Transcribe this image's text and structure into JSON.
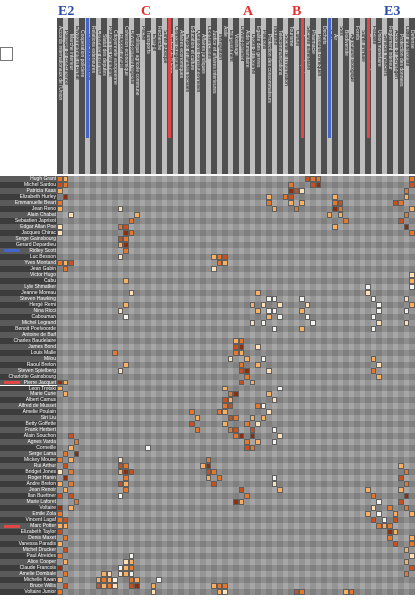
{
  "top_labels": [
    {
      "text": "E2",
      "color": "#2a4aa8"
    },
    {
      "text": "C",
      "color": "#e03030"
    },
    {
      "text": "A",
      "color": "#e03030"
    },
    {
      "text": "B",
      "color": "#e03030"
    },
    {
      "text": "E3",
      "color": "#2a4aa8"
    }
  ],
  "marker_colors": {
    "blue": "#4466cc",
    "red": "#e04848"
  },
  "cell_colors": [
    "#f4f2ec",
    "#fde0b8",
    "#f8b060",
    "#e6762a",
    "#c8501e",
    "#8a3010"
  ],
  "header_columns": [
    "Accords internationaux de l'Union",
    "Politique de concurrence",
    "Marche interieur",
    "Environnement et climat",
    "Cooperation policiere",
    "Droits fondamentaux",
    "Relations exterieures",
    "Commerce exterieur",
    "Statut des deputes",
    "Pouvoirs du Parlement",
    "Citoyennete europeenne",
    "Rapport annuel",
    "Cohesion economique",
    "Developpement regional",
    "Politique agricole commune",
    "Peche",
    "Transports",
    "Energie",
    "Recherche",
    "Sante publique",
    "Budget de l'Union",
    "Controle budgetaire",
    "Affaires economiques",
    "Emploi et affaires sociales",
    "Education et culture",
    "Questions constitutionnelles",
    "Affaires juridiques",
    "Libertes civiles",
    "Justice et affaires interieures",
    "Immigration",
    "Asile",
    "Elargissement",
    "Voisinage",
    "Developpement",
    "Aide humanitaire",
    "Droits de l'homme",
    "Egalite des genres",
    "Petitions",
    "Protection des consommateurs",
    "Industrie",
    "Telecommunications",
    "Societe de l'information",
    "Tourisme",
    "Culture",
    "Jeunesse et sport",
    "Securite alimentaire",
    "Pharmacie",
    "Produits chimiques",
    "Dechets",
    "Eau",
    "Air",
    "Sols",
    "Biodiversite",
    "Agriculture biologique",
    "Forets",
    "Sante animale",
    "Bien-etre animal",
    "Fiscalite",
    "Union monetaire",
    "Services financiers",
    "Reglement interieur",
    "Accords de Schengen",
    "Protection des donnees",
    "Lutte antiterroriste",
    "Defense"
  ],
  "member_names": [
    "Hugh Grant",
    "Michel Sardou",
    "Patricia Kaas",
    "Elizabeth Hurley",
    "Emmanuelle Beart",
    "Jean Reno",
    "Alain Chabat",
    "Sebastien Japrisot",
    "Edgar Allan Poe",
    "Jacques Chirac",
    "Serge Gainsbourg",
    "Gerard Depardieu",
    "Ridley Scott",
    "Luc Besson",
    "Yves Montand",
    "Jean Gabin",
    "Victor Hugo",
    "Cabu",
    "Lyle Shmatker",
    "Jeanne Moreau",
    "Steven Hawking",
    "Hergé Remi",
    "Nina Ricci",
    "Cabouman",
    "Michel Legrand",
    "Benoit Poelvoorde",
    "Antoine de Baif",
    "Charles Baudelaire",
    "James Bond",
    "Louis Malle",
    "Milou",
    "Raoul Breton",
    "Steven Spielberg",
    "Charlotte Gainsbourg",
    "Pierre Jacquet",
    "Leon Trotski",
    "Marie Curie",
    "Albert Camus",
    "Alfred de Musset",
    "Amelie Poulain",
    "Siri Liu",
    "Betty Goffette",
    "Frank Herbert",
    "Alain Souchon",
    "Agnes Varda",
    "Corneille",
    "Serge Lama",
    "Mickey Mouse",
    "Rui Arthur",
    "Bridget Jones",
    "Roger Hanin",
    "Andre Breton",
    "Jean Renoir",
    "Ilan Buettner",
    "Marie Laforet",
    "Voltaire",
    "Emile Zola",
    "Vincent Lagaf",
    "Marc Potter",
    "Elizabeth Taylor",
    "Denis Maxet",
    "Vanessa Paradis",
    "Michel Drucker",
    "Paul Atreides",
    "Alice Cooper",
    "Claude Francois",
    "Amelie Dombale",
    "Michelle Kwan",
    "Bruce Willis",
    "Voltaire Junior"
  ],
  "cells": [
    [
      0,
      0,
      3
    ],
    [
      0,
      1,
      2
    ],
    [
      1,
      0,
      4
    ],
    [
      1,
      1,
      3
    ],
    [
      2,
      0,
      2
    ],
    [
      3,
      1,
      5
    ],
    [
      4,
      0,
      3
    ],
    [
      6,
      2,
      1
    ],
    [
      8,
      0,
      1
    ],
    [
      9,
      0,
      1
    ],
    [
      5,
      0,
      2
    ],
    [
      0,
      45,
      4
    ],
    [
      0,
      46,
      3
    ],
    [
      0,
      47,
      3
    ],
    [
      1,
      46,
      4
    ],
    [
      1,
      47,
      5
    ],
    [
      4,
      61,
      4
    ],
    [
      4,
      62,
      3
    ],
    [
      3,
      63,
      2
    ],
    [
      2,
      63,
      3
    ],
    [
      1,
      64,
      4
    ],
    [
      0,
      64,
      3
    ],
    [
      5,
      64,
      2
    ],
    [
      6,
      63,
      3
    ],
    [
      7,
      62,
      4
    ],
    [
      8,
      63,
      5
    ],
    [
      9,
      64,
      3
    ],
    [
      1,
      42,
      3
    ],
    [
      2,
      42,
      5
    ],
    [
      2,
      43,
      4
    ],
    [
      3,
      41,
      3
    ],
    [
      3,
      42,
      4
    ],
    [
      4,
      42,
      2
    ],
    [
      5,
      43,
      3
    ],
    [
      4,
      44,
      2
    ],
    [
      2,
      44,
      1
    ],
    [
      3,
      50,
      2
    ],
    [
      4,
      50,
      3
    ],
    [
      4,
      51,
      4
    ],
    [
      5,
      50,
      5
    ],
    [
      5,
      51,
      3
    ],
    [
      6,
      51,
      2
    ],
    [
      7,
      52,
      3
    ],
    [
      6,
      49,
      2
    ],
    [
      8,
      50,
      2
    ],
    [
      3,
      38,
      2
    ],
    [
      4,
      38,
      3
    ],
    [
      5,
      39,
      2
    ],
    [
      5,
      11,
      1
    ],
    [
      6,
      14,
      2
    ],
    [
      7,
      13,
      3
    ],
    [
      8,
      11,
      3
    ],
    [
      8,
      12,
      4
    ],
    [
      9,
      12,
      5
    ],
    [
      9,
      13,
      3
    ],
    [
      10,
      11,
      4
    ],
    [
      10,
      12,
      3
    ],
    [
      11,
      11,
      2
    ],
    [
      11,
      12,
      5
    ],
    [
      12,
      12,
      3
    ],
    [
      13,
      11,
      1
    ],
    [
      13,
      28,
      2
    ],
    [
      13,
      29,
      3
    ],
    [
      13,
      30,
      4
    ],
    [
      14,
      29,
      3
    ],
    [
      14,
      30,
      2
    ],
    [
      15,
      28,
      1
    ],
    [
      14,
      0,
      3
    ],
    [
      14,
      1,
      2
    ],
    [
      14,
      2,
      4
    ],
    [
      15,
      1,
      3
    ],
    [
      17,
      12,
      2
    ],
    [
      19,
      13,
      1
    ],
    [
      21,
      12,
      2
    ],
    [
      22,
      11,
      1
    ],
    [
      23,
      12,
      0
    ],
    [
      19,
      36,
      2
    ],
    [
      20,
      38,
      0
    ],
    [
      21,
      37,
      1
    ],
    [
      22,
      38,
      0
    ],
    [
      20,
      39,
      0
    ],
    [
      21,
      40,
      1
    ],
    [
      22,
      39,
      0
    ],
    [
      23,
      38,
      2
    ],
    [
      24,
      37,
      0
    ],
    [
      23,
      40,
      0
    ],
    [
      25,
      39,
      0
    ],
    [
      22,
      36,
      2
    ],
    [
      21,
      35,
      2
    ],
    [
      24,
      35,
      1
    ],
    [
      20,
      44,
      0
    ],
    [
      21,
      45,
      1
    ],
    [
      22,
      44,
      2
    ],
    [
      23,
      45,
      0
    ],
    [
      24,
      46,
      0
    ],
    [
      25,
      44,
      2
    ],
    [
      18,
      56,
      0
    ],
    [
      19,
      56,
      1
    ],
    [
      20,
      57,
      0
    ],
    [
      21,
      58,
      0
    ],
    [
      22,
      58,
      0
    ],
    [
      23,
      57,
      0
    ],
    [
      24,
      58,
      1
    ],
    [
      25,
      57,
      0
    ],
    [
      16,
      64,
      1
    ],
    [
      17,
      64,
      2
    ],
    [
      18,
      64,
      0
    ],
    [
      20,
      63,
      1
    ],
    [
      21,
      64,
      2
    ],
    [
      22,
      63,
      0
    ],
    [
      24,
      63,
      1
    ],
    [
      27,
      32,
      2
    ],
    [
      27,
      33,
      3
    ],
    [
      28,
      32,
      4
    ],
    [
      28,
      33,
      5
    ],
    [
      29,
      32,
      3
    ],
    [
      29,
      33,
      2
    ],
    [
      30,
      31,
      1
    ],
    [
      30,
      34,
      2
    ],
    [
      31,
      33,
      3
    ],
    [
      32,
      33,
      4
    ],
    [
      32,
      34,
      5
    ],
    [
      33,
      34,
      3
    ],
    [
      34,
      35,
      2
    ],
    [
      34,
      33,
      4
    ],
    [
      28,
      36,
      1
    ],
    [
      30,
      37,
      0
    ],
    [
      31,
      36,
      2
    ],
    [
      32,
      38,
      1
    ],
    [
      29,
      10,
      3
    ],
    [
      31,
      12,
      2
    ],
    [
      32,
      11,
      1
    ],
    [
      34,
      0,
      5
    ],
    [
      34,
      1,
      2
    ],
    [
      35,
      0,
      2
    ],
    [
      36,
      1,
      2
    ],
    [
      30,
      57,
      2
    ],
    [
      31,
      58,
      1
    ],
    [
      32,
      57,
      3
    ],
    [
      33,
      58,
      2
    ],
    [
      35,
      30,
      2
    ],
    [
      36,
      31,
      3
    ],
    [
      36,
      32,
      5
    ],
    [
      37,
      30,
      4
    ],
    [
      37,
      31,
      2
    ],
    [
      38,
      30,
      3
    ],
    [
      38,
      31,
      4
    ],
    [
      39,
      29,
      3
    ],
    [
      39,
      30,
      2
    ],
    [
      40,
      31,
      4
    ],
    [
      40,
      32,
      3
    ],
    [
      41,
      30,
      2
    ],
    [
      42,
      31,
      3
    ],
    [
      42,
      32,
      4
    ],
    [
      43,
      33,
      5
    ],
    [
      43,
      32,
      3
    ],
    [
      38,
      37,
      0
    ],
    [
      39,
      38,
      1
    ],
    [
      40,
      37,
      2
    ],
    [
      41,
      36,
      1
    ],
    [
      38,
      36,
      3
    ],
    [
      40,
      35,
      2
    ],
    [
      36,
      38,
      2
    ],
    [
      37,
      39,
      1
    ],
    [
      35,
      40,
      0
    ],
    [
      41,
      34,
      3
    ],
    [
      42,
      35,
      4
    ],
    [
      43,
      35,
      5
    ],
    [
      44,
      34,
      3
    ],
    [
      44,
      36,
      2
    ],
    [
      45,
      34,
      4
    ],
    [
      45,
      35,
      3
    ],
    [
      39,
      24,
      3
    ],
    [
      40,
      25,
      2
    ],
    [
      41,
      24,
      4
    ],
    [
      42,
      25,
      3
    ],
    [
      42,
      39,
      0
    ],
    [
      43,
      40,
      1
    ],
    [
      44,
      39,
      0
    ],
    [
      43,
      2,
      4
    ],
    [
      44,
      3,
      3
    ],
    [
      45,
      2,
      2
    ],
    [
      46,
      3,
      5
    ],
    [
      46,
      1,
      3
    ],
    [
      47,
      2,
      2
    ],
    [
      48,
      1,
      4
    ],
    [
      49,
      2,
      3
    ],
    [
      50,
      1,
      5
    ],
    [
      51,
      2,
      3
    ],
    [
      52,
      1,
      2
    ],
    [
      53,
      2,
      4
    ],
    [
      54,
      3,
      3
    ],
    [
      55,
      2,
      2
    ],
    [
      47,
      0,
      3
    ],
    [
      49,
      0,
      1
    ],
    [
      51,
      0,
      2
    ],
    [
      53,
      0,
      4
    ],
    [
      55,
      0,
      5
    ],
    [
      57,
      0,
      3
    ],
    [
      58,
      1,
      2
    ],
    [
      59,
      0,
      4
    ],
    [
      60,
      1,
      3
    ],
    [
      61,
      0,
      2
    ],
    [
      62,
      1,
      4
    ],
    [
      63,
      0,
      3
    ],
    [
      64,
      1,
      2
    ],
    [
      65,
      0,
      5
    ],
    [
      66,
      1,
      3
    ],
    [
      67,
      0,
      2
    ],
    [
      68,
      1,
      4
    ],
    [
      69,
      0,
      3
    ],
    [
      45,
      16,
      0
    ],
    [
      47,
      11,
      1
    ],
    [
      48,
      11,
      4
    ],
    [
      48,
      12,
      3
    ],
    [
      49,
      11,
      2
    ],
    [
      49,
      12,
      5
    ],
    [
      49,
      13,
      4
    ],
    [
      50,
      12,
      3
    ],
    [
      51,
      11,
      4
    ],
    [
      51,
      12,
      2
    ],
    [
      52,
      12,
      3
    ],
    [
      53,
      11,
      0
    ],
    [
      48,
      26,
      2
    ],
    [
      47,
      27,
      3
    ],
    [
      48,
      27,
      5
    ],
    [
      49,
      27,
      4
    ],
    [
      49,
      28,
      3
    ],
    [
      50,
      27,
      2
    ],
    [
      51,
      28,
      4
    ],
    [
      50,
      29,
      3
    ],
    [
      50,
      39,
      0
    ],
    [
      51,
      39,
      1
    ],
    [
      52,
      40,
      2
    ],
    [
      52,
      33,
      4
    ],
    [
      53,
      34,
      3
    ],
    [
      54,
      33,
      2
    ],
    [
      54,
      32,
      5
    ],
    [
      48,
      62,
      2
    ],
    [
      49,
      63,
      3
    ],
    [
      50,
      62,
      4
    ],
    [
      51,
      63,
      3
    ],
    [
      52,
      62,
      2
    ],
    [
      53,
      63,
      5
    ],
    [
      54,
      62,
      4
    ],
    [
      55,
      63,
      3
    ],
    [
      56,
      64,
      2
    ],
    [
      52,
      56,
      2
    ],
    [
      53,
      57,
      3
    ],
    [
      54,
      58,
      0
    ],
    [
      55,
      57,
      1
    ],
    [
      56,
      58,
      0
    ],
    [
      57,
      59,
      0
    ],
    [
      56,
      56,
      2
    ],
    [
      57,
      57,
      4
    ],
    [
      58,
      58,
      3
    ],
    [
      58,
      59,
      2
    ],
    [
      55,
      60,
      3
    ],
    [
      56,
      61,
      2
    ],
    [
      57,
      61,
      4
    ],
    [
      58,
      60,
      3
    ],
    [
      59,
      60,
      5
    ],
    [
      59,
      61,
      2
    ],
    [
      60,
      60,
      3
    ],
    [
      61,
      61,
      4
    ],
    [
      56,
      0,
      3
    ],
    [
      57,
      1,
      4
    ],
    [
      58,
      0,
      2
    ],
    [
      60,
      64,
      2
    ],
    [
      61,
      64,
      3
    ],
    [
      62,
      63,
      2
    ],
    [
      63,
      64,
      1
    ],
    [
      64,
      63,
      2
    ],
    [
      65,
      64,
      4
    ],
    [
      66,
      63,
      3
    ],
    [
      63,
      13,
      0
    ],
    [
      64,
      12,
      1
    ],
    [
      64,
      13,
      2
    ],
    [
      65,
      11,
      0
    ],
    [
      65,
      12,
      2
    ],
    [
      65,
      13,
      3
    ],
    [
      66,
      11,
      1
    ],
    [
      66,
      12,
      2
    ],
    [
      66,
      13,
      0
    ],
    [
      66,
      8,
      2
    ],
    [
      66,
      9,
      1
    ],
    [
      67,
      7,
      2
    ],
    [
      67,
      8,
      3
    ],
    [
      67,
      9,
      2
    ],
    [
      68,
      7,
      4
    ],
    [
      68,
      8,
      2
    ],
    [
      68,
      9,
      3
    ],
    [
      67,
      10,
      0
    ],
    [
      68,
      10,
      1
    ],
    [
      67,
      13,
      3
    ],
    [
      68,
      13,
      4
    ],
    [
      67,
      14,
      2
    ],
    [
      68,
      14,
      5
    ],
    [
      68,
      17,
      2
    ],
    [
      69,
      17,
      1
    ],
    [
      67,
      18,
      0
    ],
    [
      68,
      28,
      2
    ],
    [
      68,
      29,
      3
    ],
    [
      68,
      30,
      3
    ],
    [
      69,
      29,
      2
    ],
    [
      69,
      30,
      1
    ],
    [
      69,
      43,
      4
    ],
    [
      69,
      44,
      3
    ],
    [
      69,
      52,
      2
    ],
    [
      69,
      53,
      3
    ]
  ]
}
